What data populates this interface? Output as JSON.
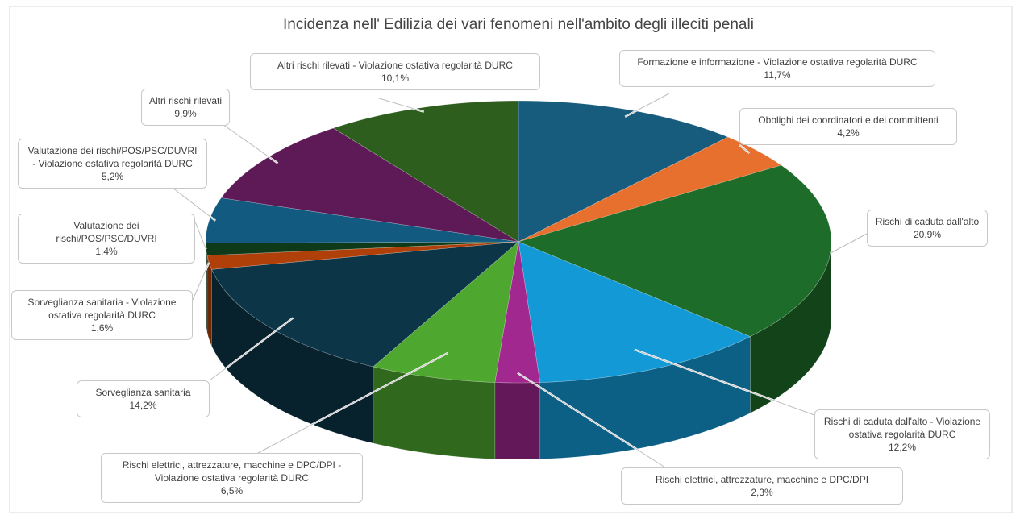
{
  "chart_data": {
    "type": "pie3d",
    "title": "Incidenza nell' Edilizia dei vari fenomeni nell'ambito degli illeciti penali",
    "categories": [
      "Formazione e informazione - Violazione ostativa regolarità DURC",
      "Obblighi dei coordinatori e dei committenti",
      "Rischi di caduta dall'alto",
      "Rischi di caduta dall'alto - Violazione ostativa regolarità DURC",
      "Rischi elettrici, attrezzature, macchine e DPC/DPI",
      "Rischi elettrici, attrezzature, macchine e DPC/DPI - Violazione ostativa regolarità DURC",
      "Sorveglianza sanitaria",
      "Sorveglianza sanitaria - Violazione ostativa regolarità DURC",
      "Valutazione dei rischi/POS/PSC/DUVRI",
      "Valutazione dei rischi/POS/PSC/DUVRI - Violazione ostativa regolarità DURC",
      "Altri rischi rilevati",
      "Altri rischi rilevati - Violazione ostativa regolarità DURC"
    ],
    "values": [
      11.7,
      4.2,
      20.9,
      12.2,
      2.3,
      6.5,
      14.2,
      1.6,
      1.4,
      5.2,
      9.9,
      10.1
    ],
    "value_labels": [
      "11,7%",
      "4,2%",
      "20,9%",
      "12,2%",
      "2,3%",
      "6,5%",
      "14,2%",
      "1,6%",
      "1,4%",
      "5,2%",
      "9,9%",
      "10,1%"
    ],
    "colors": [
      "#175c7c",
      "#e8702f",
      "#1e6c29",
      "#139ad6",
      "#a0288f",
      "#4ea72e",
      "#0c3548",
      "#b0400a",
      "#0e3a1a",
      "#125a80",
      "#5e1a56",
      "#2d5e1e"
    ]
  }
}
